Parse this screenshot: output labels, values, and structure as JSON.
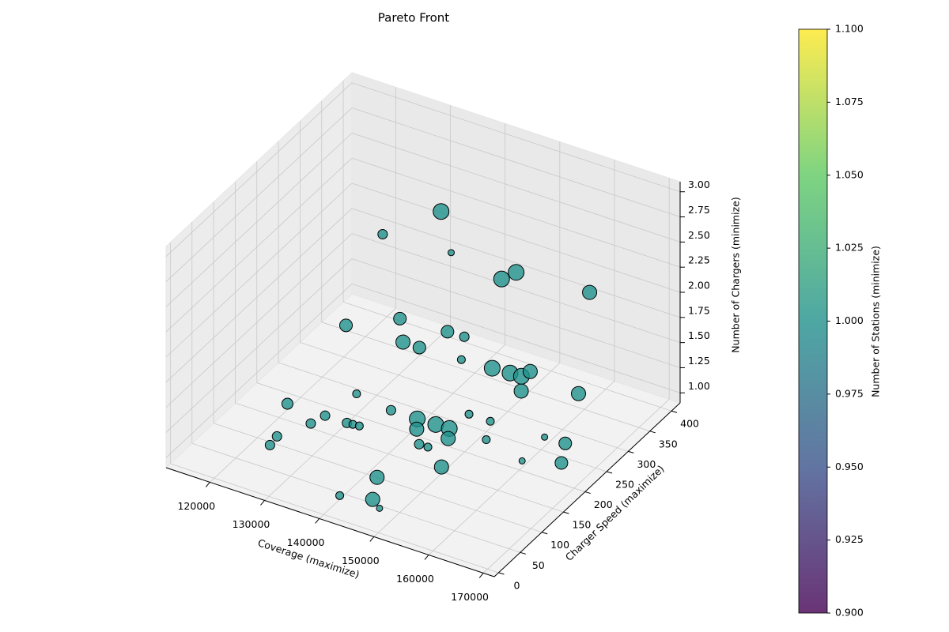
{
  "chart_data": {
    "type": "scatter3d",
    "title": "Pareto Front",
    "x_label": "Coverage (maximize)",
    "y_label": "Charger Speed (maximize)",
    "z_label": "Number of Chargers (minimize)",
    "x": [
      120600,
      127400,
      126600,
      123900,
      124200,
      128500,
      135500,
      131400,
      132400,
      133500,
      140300,
      141700,
      143600,
      146000,
      147300,
      144200,
      145800,
      146600,
      150500,
      152600,
      150500,
      143300,
      140900,
      145900,
      148100,
      160100,
      163800,
      166100,
      160500,
      158400,
      150300,
      143100,
      146200,
      148200,
      148700,
      137700,
      131700,
      138000,
      141800,
      144800,
      146300,
      149300,
      146000,
      147000,
      159800,
      142600,
      138000,
      149900
    ],
    "y": [
      162,
      163,
      140,
      96,
      76,
      222,
      213,
      163,
      164,
      165,
      213,
      194,
      214,
      215,
      196,
      168,
      168,
      253,
      253,
      217,
      140,
      82,
      26,
      39,
      27,
      257,
      258,
      220,
      200,
      357,
      327,
      351,
      353,
      354,
      368,
      348,
      157,
      202,
      161,
      161,
      207,
      208,
      336,
      357,
      365,
      239,
      162,
      170
    ],
    "z": [
      1,
      1,
      1,
      1,
      1,
      1,
      1,
      1,
      1,
      1,
      1,
      1,
      1,
      1,
      1,
      1,
      1,
      1,
      1,
      1,
      1,
      1,
      1,
      1,
      1,
      1,
      1,
      1,
      1,
      1,
      1,
      1,
      1,
      1,
      1,
      1,
      2,
      2,
      2,
      2,
      2,
      2,
      2,
      2,
      2,
      3,
      3,
      3
    ],
    "sizes": [
      102,
      75,
      75,
      75,
      75,
      52,
      75,
      75,
      52,
      52,
      207,
      168,
      207,
      207,
      168,
      75,
      52,
      52,
      52,
      52,
      168,
      168,
      52,
      168,
      33,
      33,
      133,
      133,
      33,
      168,
      168,
      207,
      207,
      207,
      168,
      52,
      133,
      133,
      168,
      133,
      133,
      75,
      207,
      207,
      168,
      207,
      75,
      33
    ],
    "color_values": [
      1,
      1,
      1,
      1,
      1,
      1,
      1,
      1,
      1,
      1,
      1,
      1,
      1,
      1,
      1,
      1,
      1,
      1,
      1,
      1,
      1,
      1,
      1,
      1,
      1,
      1,
      1,
      1,
      1,
      1,
      1,
      1,
      1,
      1,
      1,
      1,
      1,
      1,
      1,
      1,
      1,
      1,
      1,
      1,
      1,
      1,
      1,
      1
    ],
    "xlim": [
      112000,
      172000
    ],
    "ylim": [
      -10,
      420
    ],
    "zlim": [
      0.9,
      3.1
    ],
    "xticks": [
      120000,
      130000,
      140000,
      150000,
      160000,
      170000
    ],
    "yticks": [
      0,
      50,
      100,
      150,
      200,
      250,
      300,
      350,
      400
    ],
    "zticks": [
      {
        "value": 1,
        "label": "1.00"
      },
      {
        "value": 1.25,
        "label": "1.25"
      },
      {
        "value": 1.5,
        "label": "1.50"
      },
      {
        "value": 1.75,
        "label": "1.75"
      },
      {
        "value": 2,
        "label": "2.00"
      },
      {
        "value": 2.25,
        "label": "2.25"
      },
      {
        "value": 2.5,
        "label": "2.50"
      },
      {
        "value": 2.75,
        "label": "2.75"
      },
      {
        "value": 3,
        "label": "3.00"
      }
    ],
    "grid": true,
    "colormap": [
      "#440154",
      "#3b528b",
      "#21918c",
      "#5ec962",
      "#fde725"
    ],
    "alpha": 0.8,
    "colorbar": {
      "label": "Number of Stations (minimize)",
      "lim": [
        0.9,
        1.1
      ],
      "ticks": [
        {
          "value": 0.9,
          "label": "0.900"
        },
        {
          "value": 0.925,
          "label": "0.925"
        },
        {
          "value": 0.95,
          "label": "0.950"
        },
        {
          "value": 0.975,
          "label": "0.975"
        },
        {
          "value": 1,
          "label": "1.000"
        },
        {
          "value": 1.025,
          "label": "1.025"
        },
        {
          "value": 1.05,
          "label": "1.050"
        },
        {
          "value": 1.075,
          "label": "1.075"
        },
        {
          "value": 1.1,
          "label": "1.100"
        }
      ]
    }
  }
}
